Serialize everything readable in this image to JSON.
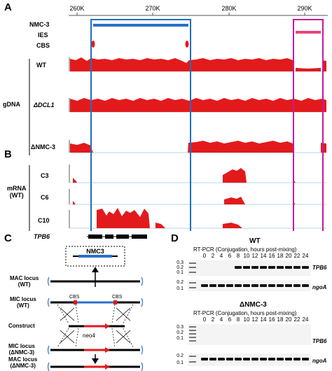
{
  "panels": {
    "a": "A",
    "b": "B",
    "c": "C",
    "d": "D"
  },
  "browser": {
    "axis_ticks": [
      "260K",
      "270K",
      "280K",
      "290K"
    ],
    "tracks": {
      "nmc3": "NMC-3",
      "ies": "IES",
      "cbs": "CBS"
    },
    "gdna_group": "gDNA",
    "gdna_rows": {
      "wt": "WT",
      "dcl1": "ΔDCL1",
      "dnmc3": "ΔNMC-3"
    },
    "mrna_group": "mRNA\n(WT)",
    "mrna_group_line1": "mRNA",
    "mrna_group_line2": "(WT)",
    "mrna_rows": {
      "c3": "C3",
      "c6": "C6",
      "c10": "C10"
    },
    "gene": "TPB6",
    "colors": {
      "signal": "#e31a1c",
      "box_blue": "#1f6fc0",
      "box_magenta": "#c8189b",
      "bar_blue": "#2a6fc9",
      "bar_pink": "#e8457a"
    }
  },
  "schematic": {
    "top_label": "NMC3",
    "mac_wt": "MAC locus\n(WT)",
    "mac_wt_l1": "MAC locus",
    "mac_wt_l2": "(WT)",
    "mic_wt_l1": "MIC locus",
    "mic_wt_l2": "(WT)",
    "cbs_left": "CBS",
    "cbs_right": "CBS",
    "construct": "Construct",
    "neo4": "neo4",
    "mic_d_l1": "MIC locus",
    "mic_d_l2": "(ΔNMC-3)",
    "mac_d_l1": "MAC locus",
    "mac_d_l2": "(ΔNMC-3)"
  },
  "gel": {
    "wt_title": "WT",
    "dnmc3_title": "ΔNMC-3",
    "subtitle": "RT-PCR (Conjugation, hours post-mixing)",
    "timepoints": [
      "0",
      "2",
      "4",
      "6",
      "8",
      "10",
      "12",
      "14",
      "16",
      "18",
      "20",
      "22",
      "24"
    ],
    "ladder_top": [
      "0.3",
      "0.2",
      "0.1"
    ],
    "ladder_bottom": [
      "0.2",
      "0.1"
    ],
    "gene_tpb6": "TPB6",
    "gene_ngoa": "ngoA",
    "wt_tpb6_present_from_hour": 8,
    "dnmc3_tpb6_present": false
  }
}
